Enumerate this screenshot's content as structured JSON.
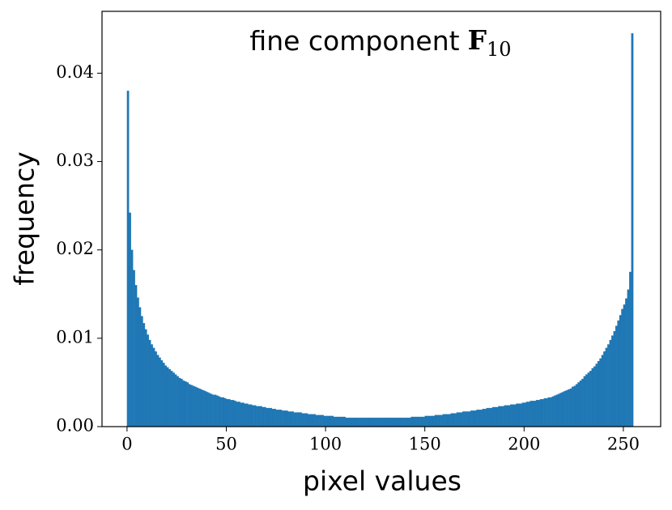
{
  "chart_data": {
    "type": "histogram",
    "title": "fine component",
    "title_symbol": "F",
    "title_subscript": "10",
    "xlabel": "pixel values",
    "ylabel": "frequency",
    "color": "#1f77b4",
    "xlim": [
      -12.6,
      268.8
    ],
    "ylim": [
      0,
      0.047
    ],
    "xticks": [
      0,
      50,
      100,
      150,
      200,
      250
    ],
    "yticks": [
      {
        "value": 0,
        "label": "0.00"
      },
      0.01,
      0.02,
      0.03,
      0.04
    ],
    "grid": false,
    "bins": [
      0,
      1,
      2,
      3,
      4,
      5,
      6,
      7,
      8,
      9,
      10,
      11,
      12,
      13,
      14,
      15,
      16,
      17,
      18,
      19,
      20,
      21,
      22,
      23,
      24,
      25,
      26,
      27,
      28,
      29,
      30,
      31,
      32,
      33,
      34,
      35,
      36,
      37,
      38,
      39,
      40,
      41,
      42,
      43,
      44,
      45,
      46,
      47,
      48,
      49,
      50,
      51,
      52,
      53,
      54,
      55,
      56,
      57,
      58,
      59,
      60,
      61,
      62,
      63,
      64,
      65,
      66,
      67,
      68,
      69,
      70,
      71,
      72,
      73,
      74,
      75,
      76,
      77,
      78,
      79,
      80,
      81,
      82,
      83,
      84,
      85,
      86,
      87,
      88,
      89,
      90,
      91,
      92,
      93,
      94,
      95,
      96,
      97,
      98,
      99,
      100,
      101,
      102,
      103,
      104,
      105,
      106,
      107,
      108,
      109,
      110,
      111,
      112,
      113,
      114,
      115,
      116,
      117,
      118,
      119,
      120,
      121,
      122,
      123,
      124,
      125,
      126,
      127,
      128,
      129,
      130,
      131,
      132,
      133,
      134,
      135,
      136,
      137,
      138,
      139,
      140,
      141,
      142,
      143,
      144,
      145,
      146,
      147,
      148,
      149,
      150,
      151,
      152,
      153,
      154,
      155,
      156,
      157,
      158,
      159,
      160,
      161,
      162,
      163,
      164,
      165,
      166,
      167,
      168,
      169,
      170,
      171,
      172,
      173,
      174,
      175,
      176,
      177,
      178,
      179,
      180,
      181,
      182,
      183,
      184,
      185,
      186,
      187,
      188,
      189,
      190,
      191,
      192,
      193,
      194,
      195,
      196,
      197,
      198,
      199,
      200,
      201,
      202,
      203,
      204,
      205,
      206,
      207,
      208,
      209,
      210,
      211,
      212,
      213,
      214,
      215,
      216,
      217,
      218,
      219,
      220,
      221,
      222,
      223,
      224,
      225,
      226,
      227,
      228,
      229,
      230,
      231,
      232,
      233,
      234,
      235,
      236,
      237,
      238,
      239,
      240,
      241,
      242,
      243,
      244,
      245,
      246,
      247,
      248,
      249,
      250,
      251,
      252,
      253,
      254,
      255
    ],
    "values": [
      0.038,
      0.0242,
      0.02,
      0.0177,
      0.016,
      0.0146,
      0.0135,
      0.0125,
      0.0117,
      0.011,
      0.0104,
      0.0098,
      0.0093,
      0.0089,
      0.0085,
      0.0081,
      0.0078,
      0.0075,
      0.0072,
      0.0069,
      0.0067,
      0.0065,
      0.0063,
      0.0061,
      0.0059,
      0.0057,
      0.0055,
      0.0054,
      0.0052,
      0.0051,
      0.005,
      0.0048,
      0.0047,
      0.0046,
      0.0045,
      0.0044,
      0.0043,
      0.0042,
      0.0041,
      0.004,
      0.0039,
      0.0038,
      0.0037,
      0.0036,
      0.0036,
      0.0035,
      0.0034,
      0.0033,
      0.0033,
      0.0032,
      0.0031,
      0.0031,
      0.003,
      0.003,
      0.0029,
      0.0028,
      0.0028,
      0.0027,
      0.0027,
      0.0026,
      0.0026,
      0.0025,
      0.0025,
      0.0024,
      0.0024,
      0.0023,
      0.0023,
      0.0023,
      0.0022,
      0.0022,
      0.0021,
      0.0021,
      0.0021,
      0.002,
      0.002,
      0.0019,
      0.0019,
      0.0019,
      0.0018,
      0.0018,
      0.0018,
      0.0017,
      0.0017,
      0.0017,
      0.0016,
      0.0016,
      0.0016,
      0.0016,
      0.0015,
      0.0015,
      0.0015,
      0.0014,
      0.0014,
      0.0014,
      0.0014,
      0.0013,
      0.0013,
      0.0013,
      0.0013,
      0.0012,
      0.0012,
      0.0012,
      0.0012,
      0.0012,
      0.0011,
      0.0011,
      0.0011,
      0.0011,
      0.0011,
      0.0011,
      0.001,
      0.001,
      0.001,
      0.001,
      0.001,
      0.001,
      0.001,
      0.001,
      0.001,
      0.001,
      0.001,
      0.001,
      0.001,
      0.001,
      0.001,
      0.001,
      0.001,
      0.001,
      0.001,
      0.001,
      0.001,
      0.001,
      0.001,
      0.001,
      0.001,
      0.001,
      0.001,
      0.001,
      0.001,
      0.001,
      0.001,
      0.001,
      0.001,
      0.0011,
      0.0011,
      0.0011,
      0.0011,
      0.0011,
      0.0011,
      0.0011,
      0.0012,
      0.0012,
      0.0012,
      0.0012,
      0.0012,
      0.0013,
      0.0013,
      0.0013,
      0.0013,
      0.0014,
      0.0014,
      0.0014,
      0.0014,
      0.0015,
      0.0015,
      0.0015,
      0.0016,
      0.0016,
      0.0016,
      0.0017,
      0.0017,
      0.0017,
      0.0017,
      0.0018,
      0.0018,
      0.0018,
      0.0019,
      0.0019,
      0.0019,
      0.002,
      0.002,
      0.0021,
      0.0021,
      0.0021,
      0.0022,
      0.0022,
      0.0022,
      0.0023,
      0.0023,
      0.0023,
      0.0024,
      0.0024,
      0.0024,
      0.0025,
      0.0025,
      0.0025,
      0.0026,
      0.0026,
      0.0026,
      0.0027,
      0.0027,
      0.0028,
      0.0028,
      0.0029,
      0.0029,
      0.0029,
      0.003,
      0.003,
      0.0031,
      0.0031,
      0.0032,
      0.0032,
      0.0033,
      0.0033,
      0.0034,
      0.0035,
      0.0036,
      0.0037,
      0.0038,
      0.0039,
      0.004,
      0.0041,
      0.0042,
      0.0043,
      0.0045,
      0.0046,
      0.0048,
      0.005,
      0.0052,
      0.0054,
      0.0057,
      0.0059,
      0.0061,
      0.0063,
      0.0066,
      0.0068,
      0.0071,
      0.0074,
      0.0077,
      0.0081,
      0.0085,
      0.0089,
      0.0093,
      0.0098,
      0.0103,
      0.0108,
      0.0114,
      0.012,
      0.0126,
      0.0133,
      0.0138,
      0.0145,
      0.0155,
      0.0175,
      0.0445
    ]
  }
}
